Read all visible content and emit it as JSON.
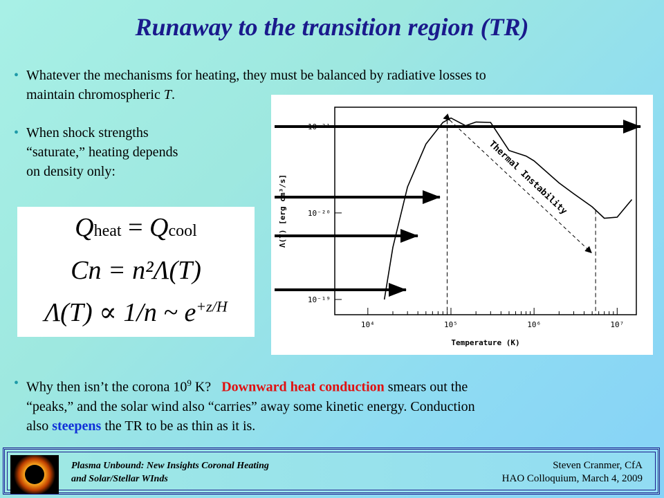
{
  "slide": {
    "title": "Runaway to the transition region (TR)",
    "bullet1_a": "Whatever the mechanisms for heating, they must be balanced by radiative losses to",
    "bullet1_b": "maintain chromospheric",
    "bullet1_T": "T",
    "bullet2_a": "When shock strengths",
    "bullet2_b": "“saturate,” heating depends",
    "bullet2_c": "on density only:",
    "bullet3_a": "Why then isn’t the corona 10",
    "bullet3_exp": "9",
    "bullet3_b": " K?",
    "bullet3_red": "Downward heat conduction",
    "bullet3_c": " smears out the",
    "bullet3_d": "“peaks,” and the solar wind also “carries” away some kinetic energy.  Conduction",
    "bullet3_e": "also ",
    "bullet3_blue": "steepens",
    "bullet3_f": " the TR to be as thin as it is."
  },
  "equations": {
    "eq1_lhs": "Q",
    "eq1_lhs_sub": "heat",
    "eq1_eq": " = ",
    "eq1_rhs": "Q",
    "eq1_rhs_sub": "cool",
    "eq2": "Cn  =  n²Λ(T)",
    "eq3": "Λ(T)  ∝  1/n  ~ e",
    "eq3_exp": "+z/H"
  },
  "chart_data": {
    "type": "line",
    "xlabel": "Temperature (K)",
    "ylabel": "Λ(T) [erg cm³/s]",
    "x_scale": "log",
    "y_scale": "log_inverted",
    "x_ticks": [
      "10⁴",
      "10⁵",
      "10⁶",
      "10⁷"
    ],
    "y_ticks": [
      "10⁻²¹",
      "10⁻²⁰",
      "10⁻¹⁹"
    ],
    "annotation": "Thermal Instability",
    "series": [
      {
        "x": [
          15800,
          20000,
          30000,
          50000,
          80000,
          100000,
          150000,
          200000,
          300000,
          500000,
          800000,
          1000000,
          2000000,
          3000000,
          5000000,
          7000000,
          10000000,
          15000000
        ],
        "y": [
          1e-19,
          2.5e-20,
          5e-21,
          1.6e-21,
          9e-22,
          8e-22,
          9.8e-22,
          8.9e-22,
          9e-22,
          1.9e-21,
          2.2e-21,
          2.5e-21,
          4.5e-21,
          6e-21,
          8.5e-21,
          1.15e-20,
          1.12e-20,
          7e-21
        ]
      }
    ],
    "dashed_verticals": [
      90000,
      5500000
    ],
    "ylim": [
      1.5e-19,
      6e-22
    ],
    "xlim": [
      4000,
      17000000
    ]
  },
  "footer": {
    "left_1": "Plasma Unbound:  New Insights Coronal Heating",
    "left_2": "and Solar/Stellar WInds",
    "right_1": "Steven Cranmer,  CfA",
    "right_2": "HAO Colloquium, March 4, 2009"
  }
}
